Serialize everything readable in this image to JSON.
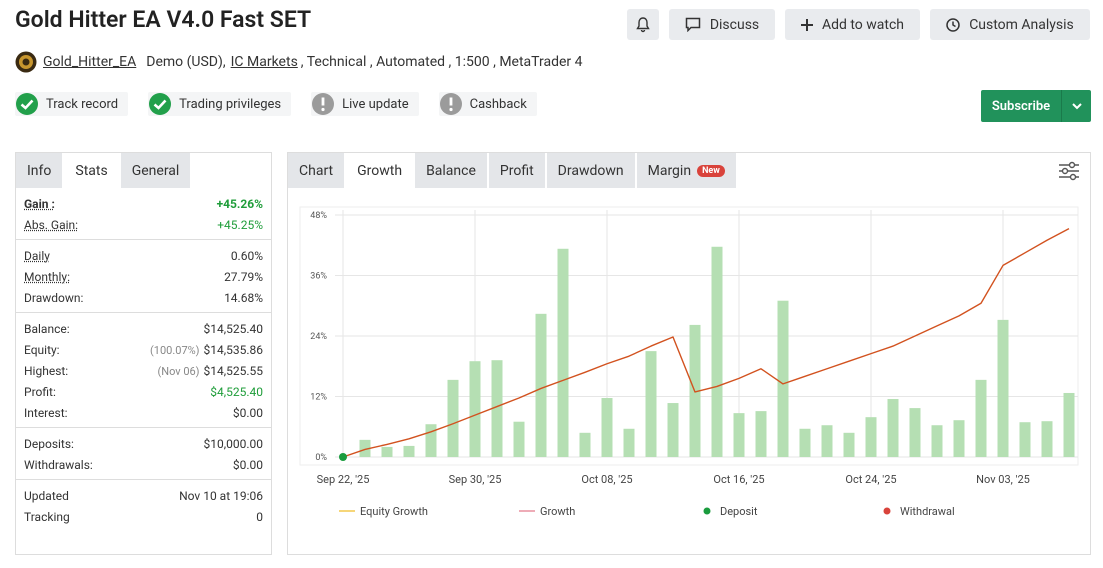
{
  "header": {
    "title": "Gold Hitter EA V4.0 Fast SET",
    "buttons": [
      "Discuss",
      "Add to watch",
      "Custom Analysis"
    ],
    "author": "Gold_Hitter_EA",
    "account": "Demo (USD),",
    "broker": "IC Markets",
    "details": ", Technical , Automated , 1:500 , MetaTrader 4"
  },
  "badges": [
    {
      "label": "Track record",
      "status": "ok"
    },
    {
      "label": "Trading privileges",
      "status": "ok"
    },
    {
      "label": "Live update",
      "status": "pending"
    },
    {
      "label": "Cashback",
      "status": "pending"
    }
  ],
  "subscribe": "Subscribe",
  "stats": {
    "tabs": [
      "Info",
      "Stats",
      "General"
    ],
    "active": 1,
    "groups": [
      {
        "rows": [
          {
            "label": "Gain :",
            "value": "+45.26%",
            "color": "#1f9d3a",
            "bold": true,
            "underline": true
          },
          {
            "label": "Abs. Gain:",
            "value": "+45.25%",
            "color": "#1f9d3a",
            "underline": true
          }
        ]
      },
      {
        "rows": [
          {
            "label": "Daily",
            "value": "0.60%",
            "underline": true
          },
          {
            "label": "Monthly:",
            "value": "27.79%",
            "underline": true
          },
          {
            "label": "Drawdown:",
            "value": "14.68%"
          }
        ]
      },
      {
        "rows": [
          {
            "label": "Balance:",
            "value": "$14,525.40"
          },
          {
            "label": "Equity:",
            "note": "(100.07%)",
            "value": "$14,535.86"
          },
          {
            "label": "Highest:",
            "note": "(Nov 06)",
            "value": "$14,525.55"
          },
          {
            "label": "Profit:",
            "value": "$4,525.40",
            "color": "#1f9d3a"
          },
          {
            "label": "Interest:",
            "value": "$0.00"
          }
        ]
      },
      {
        "rows": [
          {
            "label": "Deposits:",
            "value": "$10,000.00"
          },
          {
            "label": "Withdrawals:",
            "value": "$0.00"
          }
        ]
      },
      {
        "rows": [
          {
            "label": "Updated",
            "value": "Nov 10 at 19:06"
          },
          {
            "label": "Tracking",
            "value": "0"
          }
        ]
      }
    ]
  },
  "chart_tabs": {
    "tabs": [
      "Chart",
      "Growth",
      "Balance",
      "Profit",
      "Drawdown",
      "Margin"
    ],
    "active": 1,
    "new_badge": "New"
  },
  "chart_data": {
    "type": "bar",
    "categories": [
      "Sep 22, '25",
      null,
      null,
      null,
      null,
      null,
      "Sep 30, '25",
      null,
      null,
      null,
      null,
      null,
      "Oct 08, '25",
      null,
      null,
      null,
      null,
      null,
      "Oct 16, '25",
      null,
      null,
      null,
      null,
      null,
      "Oct 24, '25",
      null,
      null,
      null,
      null,
      null,
      "Nov 03, '25",
      null,
      null,
      null
    ],
    "bars": {
      "color": "#b5dfb3",
      "values": [
        null,
        3.4,
        2.0,
        2.2,
        6.5,
        15.3,
        19.0,
        19.2,
        7.0,
        28.4,
        41.3,
        4.8,
        11.7,
        5.6,
        21.0,
        10.7,
        26.2,
        41.7,
        8.7,
        9.1,
        31.0,
        5.6,
        6.3,
        4.8,
        7.9,
        11.5,
        9.7,
        6.3,
        7.3,
        15.3,
        27.2,
        6.9,
        7.1,
        12.7
      ]
    },
    "line": {
      "color": "#d2521f",
      "values": [
        0,
        1.5,
        2.5,
        3.6,
        5.0,
        6.6,
        8.3,
        10.0,
        11.7,
        13.6,
        15.2,
        16.8,
        18.5,
        20.0,
        22.0,
        23.8,
        12.9,
        14.0,
        15.6,
        17.5,
        14.5,
        16.0,
        17.5,
        19.0,
        20.5,
        22.0,
        24.0,
        26.0,
        28.0,
        30.5,
        38.0,
        40.5,
        43.0,
        45.3
      ]
    },
    "deposits": {
      "color": "#1a9c3e",
      "values": [
        0,
        null,
        null,
        null,
        null,
        null,
        null,
        null,
        null,
        null,
        null,
        null,
        null,
        null,
        null,
        null,
        null,
        null,
        null,
        null,
        null,
        null,
        null,
        null,
        null,
        null,
        null,
        null,
        null,
        null,
        null,
        null,
        null,
        null
      ]
    },
    "ylim": [
      0,
      48
    ],
    "yticks": [
      {
        "value": 0,
        "label": "0%"
      },
      {
        "value": 12,
        "label": "12%"
      },
      {
        "value": 24,
        "label": "24%"
      },
      {
        "value": 36,
        "label": "36%"
      },
      {
        "value": 48,
        "label": "48%"
      }
    ],
    "grid": true,
    "legend": [
      {
        "name": "Equity Growth",
        "color": "#f2c94c",
        "shape": "line"
      },
      {
        "name": "Growth",
        "color": "#e8909f",
        "shape": "line"
      },
      {
        "name": "Deposit",
        "color": "#1a9c3e",
        "shape": "dot"
      },
      {
        "name": "Withdrawal",
        "color": "#d9433b",
        "shape": "dot"
      }
    ]
  }
}
